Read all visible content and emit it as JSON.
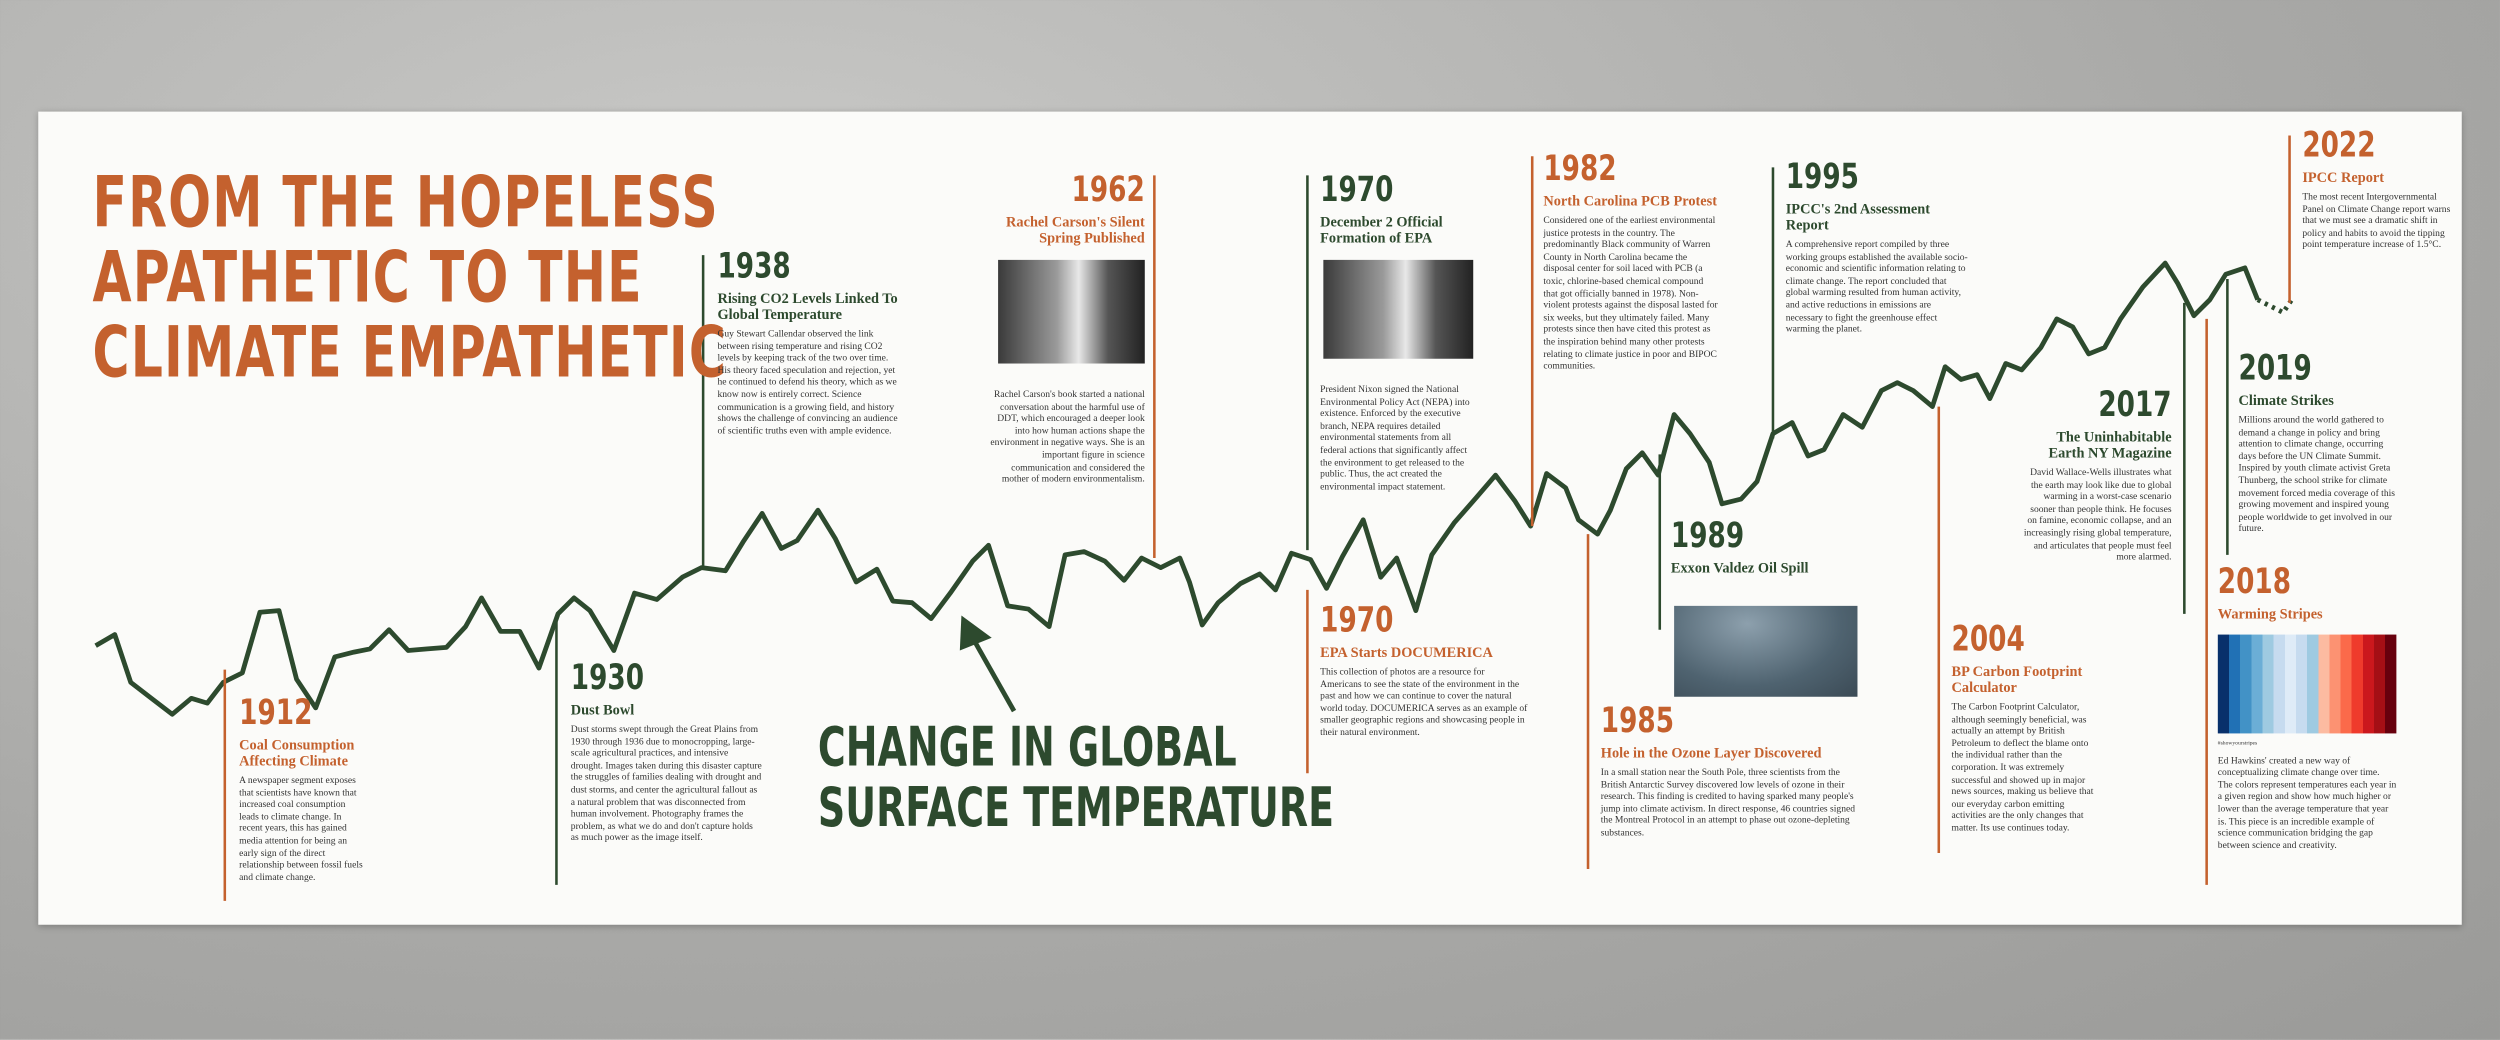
{
  "header": {
    "title_lines": [
      "FROM THE HOPELESS",
      "APATHETIC TO THE",
      "CLIMATE EMPATHETIC"
    ]
  },
  "line_label": {
    "lines": [
      "CHANGE IN GLOBAL",
      "SURFACE TEMPERATURE"
    ]
  },
  "events": [
    {
      "year": "1912",
      "title": "Coal Consumption Affecting Climate",
      "body": "A newspaper segment exposes that scientists have known that increased coal consumption leads to climate change. In recent years, this has gained media attention for being an early sign of the direct relationship between fossil fuels and climate change."
    },
    {
      "year": "1930",
      "title": "Dust Bowl",
      "body": "Dust storms swept through the Great Plains from 1930 through 1936 due to monocropping, large-scale agricultural practices, and intensive drought. Images taken during this disaster capture the struggles of families dealing with drought and dust storms, and center the agricultural fallout as a natural problem that was disconnected from human involvement. Photography frames the problem, as what we do and don't capture holds as much power as the image itself."
    },
    {
      "year": "1938",
      "title": "Rising CO2 Levels Linked To Global Temperature",
      "body": "Guy Stewart Callendar observed the link between rising temperature and rising CO2 levels by keeping track of the two over time. His theory faced speculation and rejection, yet he continued to defend his theory, which as we know now is entirely correct. Science communication is a growing field, and history shows the challenge of convincing an audience of scientific truths even with ample evidence."
    },
    {
      "year": "1962",
      "title": "Rachel Carson's Silent Spring Published",
      "body": "Rachel Carson's book started a national conversation about the harmful use of DDT, which encouraged a deeper look into how human actions shape the environment in negative ways. She is an important figure in science communication and considered the mother of modern environmentalism."
    },
    {
      "year": "1970",
      "title": "December 2 Official Formation of EPA",
      "body": "President Nixon signed the National Environmental Policy Act (NEPA) into existence. Enforced by the executive branch, NEPA requires detailed environmental statements from all federal actions that significantly affect the environment to get released to the public. Thus, the act created the environmental impact statement."
    },
    {
      "year": "1970",
      "title": "EPA Starts DOCUMERICA",
      "body": "This collection of photos are a resource for Americans to see the state of the environment in the past and how we can continue to cover the natural world today. DOCUMERICA serves as an example of smaller geographic regions and showcasing people in their natural environment."
    },
    {
      "year": "1982",
      "title": "North Carolina PCB Protest",
      "body": "Considered one of the earliest environmental justice protests in the country. The predominantly Black community of Warren County in North Carolina became the disposal center for soil laced with PCB (a toxic, chlorine-based chemical compound that got officially banned in 1978). Non-violent protests against the disposal lasted for six weeks, but they ultimately failed. Many protests since then have cited this protest as the inspiration behind many other protests relating to climate justice in poor and BIPOC communities."
    },
    {
      "year": "1985",
      "title": "Hole in the Ozone Layer Discovered",
      "body": "In a small station near the South Pole, three scientists from the British Antarctic Survey discovered low levels of ozone in their research. This finding is credited to having sparked many people's jump into climate activism. In direct response, 46 countries signed the Montreal Protocol in an attempt to phase out ozone-depleting substances."
    },
    {
      "year": "1989",
      "title": "Exxon Valdez Oil Spill"
    },
    {
      "year": "1995",
      "title": "IPCC's 2nd Assessment Report",
      "body": "A comprehensive report compiled by three working groups established the available socio-economic and scientific information relating to climate change. The report concluded that global warming resulted from human activity, and active reductions in emissions are necessary to fight the greenhouse effect warming the planet."
    },
    {
      "year": "2004",
      "title": "BP Carbon Footprint Calculator",
      "body": "The Carbon Footprint Calculator, although seemingly beneficial, was actually an attempt by British Petroleum to deflect the blame onto the individual rather than the corporation. It was extremely successful and showed up in major news sources, making us believe that our everyday carbon emitting activities are the only changes that matter. Its use continues today."
    },
    {
      "year": "2017",
      "title": "The Uninhabitable Earth NY Magazine",
      "body": "David Wallace-Wells illustrates what the earth may look like due to global warming in a worst-case scenario sooner than people think. He focuses on famine, economic collapse, and an increasingly rising global temperature, and articulates that people must feel more alarmed."
    },
    {
      "year": "2018",
      "title": "Warming Stripes",
      "caption": "#showyourstripes",
      "body": "Ed Hawkins' created a new way of conceptualizing climate change over time. The colors represent temperatures each year in a given region and show how much higher or lower than the average temperature that year is. This piece is an incredible example of science communication bridging the gap between science and creativity."
    },
    {
      "year": "2019",
      "title": "Climate Strikes",
      "body": "Millions around the world gathered to demand a change in policy and bring attention to climate change, occurring days before the UN Climate Summit. Inspired by youth climate activist Greta Thunberg, the school strike for climate movement forced media coverage of this growing movement and inspired young people worldwide to get involved in our future."
    },
    {
      "year": "2022",
      "title": "IPCC Report",
      "body": "The most recent Intergovernmental Panel on Climate Change report warns that we must see a dramatic shift in policy and habits to avoid the tipping point temperature increase of 1.5°C."
    }
  ]
}
